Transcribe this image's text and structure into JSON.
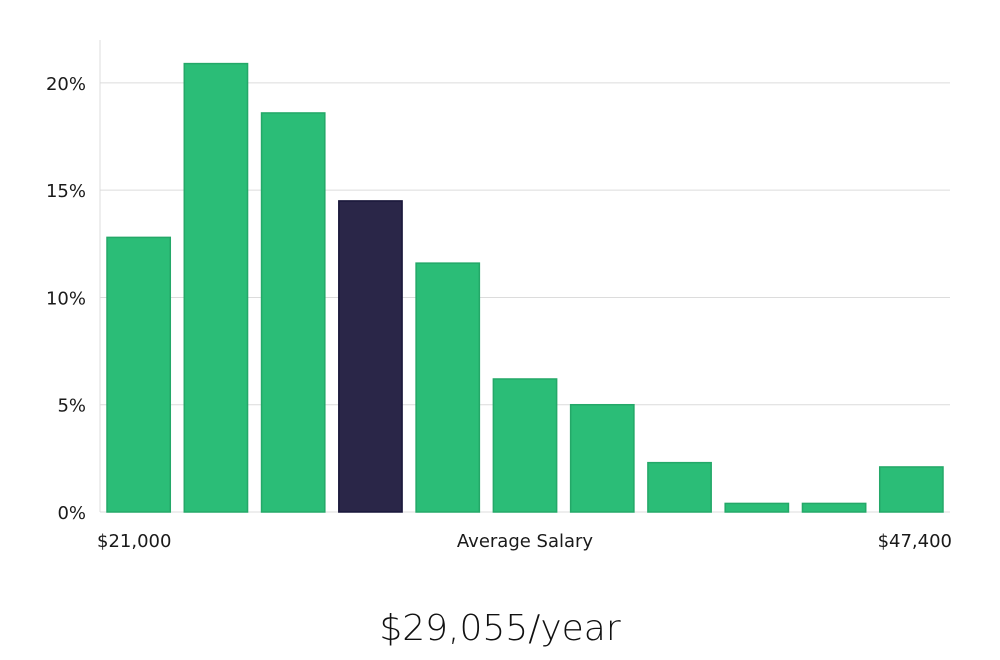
{
  "chart_data": {
    "type": "bar",
    "xlabel": "Average Salary",
    "x_start_label": "$21,000",
    "x_end_label": "$47,400",
    "ylim": [
      0,
      22
    ],
    "yticks": [
      0,
      5,
      10,
      15,
      20
    ],
    "ytick_labels": [
      "0%",
      "5%",
      "10%",
      "15%",
      "20%"
    ],
    "values": [
      12.8,
      20.9,
      18.6,
      14.5,
      11.6,
      6.2,
      5.0,
      2.3,
      0.4,
      0.4,
      2.1
    ],
    "highlight_index": 3,
    "grid": true,
    "colors": {
      "bar": "#2bbd77",
      "bar_border": "#24a868",
      "highlight": "#2a2648",
      "highlight_border": "#18163a"
    }
  },
  "headline": "$29,055/year"
}
